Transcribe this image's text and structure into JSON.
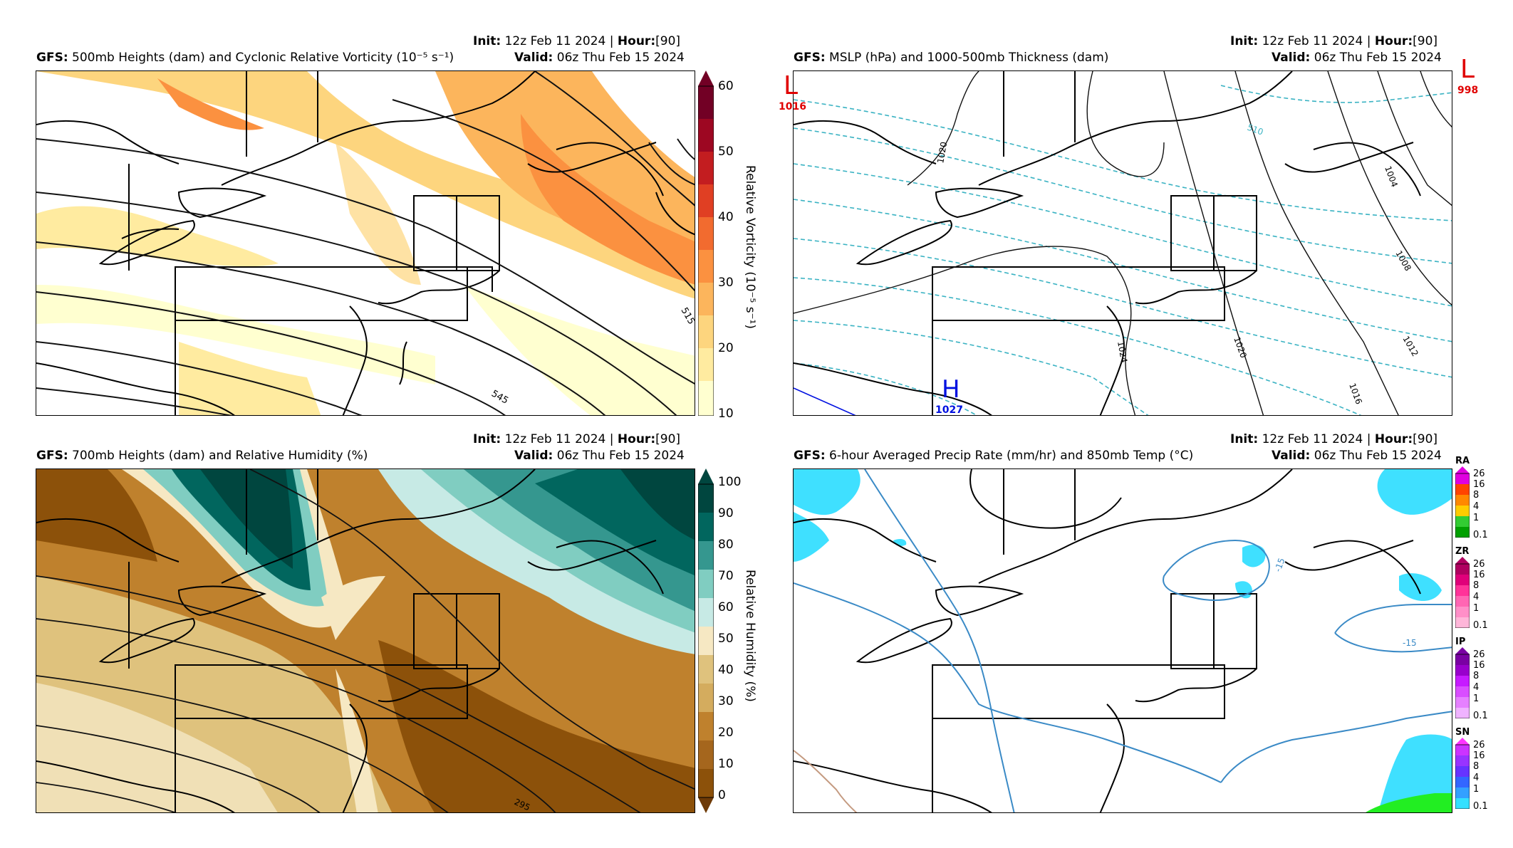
{
  "panels": [
    {
      "title_model": "GFS",
      "title": "500mb Heights (dam) and Cyclonic Relative Vorticity (10⁻⁵ s⁻¹)",
      "init_label": "Init",
      "init_value": "12z Feb 11 2024",
      "hour_label": "Hour",
      "hour_value": "[90]",
      "valid_label": "Valid",
      "valid_value": "06z Thu Feb 15 2024",
      "colorbar_label": "Relative Vorticity (10⁻⁵ s⁻¹)",
      "colorbar_ticks": [
        "60",
        "50",
        "40",
        "30",
        "20",
        "10"
      ],
      "contour_labels": [
        "515",
        "545"
      ]
    },
    {
      "title_model": "GFS",
      "title": "MSLP (hPa) and 1000-500mb Thickness (dam)",
      "init_label": "Init",
      "init_value": "12z Feb 11 2024",
      "hour_label": "Hour",
      "hour_value": "[90]",
      "valid_label": "Valid",
      "valid_value": "06z Thu Feb 15 2024",
      "lows": [
        {
          "symbol": "L",
          "value": "1016"
        },
        {
          "symbol": "L",
          "value": "998"
        }
      ],
      "highs": [
        {
          "symbol": "H",
          "value": "1027"
        }
      ],
      "contour_labels": [
        "1020",
        "1008",
        "1012",
        "1020",
        "1024",
        "1016",
        "510",
        "1004"
      ]
    },
    {
      "title_model": "GFS",
      "title": "700mb Heights (dam) and Relative Humidity (%)",
      "init_label": "Init",
      "init_value": "12z Feb 11 2024",
      "hour_label": "Hour",
      "hour_value": "[90]",
      "valid_label": "Valid",
      "valid_value": "06z Thu Feb 15 2024",
      "colorbar_label": "Relative Humidity (%)",
      "colorbar_ticks": [
        "100",
        "90",
        "80",
        "70",
        "60",
        "50",
        "40",
        "30",
        "20",
        "10",
        "0"
      ],
      "contour_labels": [
        "295"
      ]
    },
    {
      "title_model": "GFS",
      "title": "6-hour Averaged Precip Rate (mm/hr) and 850mb Temp (°C)",
      "init_label": "Init",
      "init_value": "12z Feb 11 2024",
      "hour_label": "Hour",
      "hour_value": "[90]",
      "valid_label": "Valid",
      "valid_value": "06z Thu Feb 15 2024",
      "contour_labels": [
        "-15",
        "-15"
      ],
      "precip_bars": [
        {
          "type": "RA",
          "ticks": [
            "26",
            "16",
            "8",
            "4",
            "1",
            "0.1"
          ],
          "colors": [
            "#00a000",
            "#33cc33",
            "#ffff00",
            "#ffcc00",
            "#ff8800",
            "#ff4400",
            "#e000e0"
          ]
        },
        {
          "type": "ZR",
          "ticks": [
            "26",
            "16",
            "8",
            "4",
            "1",
            "0.1"
          ],
          "colors": [
            "#ffb6d9",
            "#ff8fc8",
            "#ff66b3",
            "#ff3399",
            "#e0007a",
            "#b00060"
          ]
        },
        {
          "type": "IP",
          "ticks": [
            "26",
            "16",
            "8",
            "4",
            "1",
            "0.1"
          ],
          "colors": [
            "#f0b3ff",
            "#e680ff",
            "#d94dff",
            "#c61aff",
            "#9900cc",
            "#7a00a3"
          ]
        },
        {
          "type": "SN",
          "ticks": [
            "26",
            "16",
            "8",
            "4",
            "1",
            "0.1"
          ],
          "colors": [
            "#33e0ff",
            "#33a0ff",
            "#3366ff",
            "#6633ff",
            "#9933ff",
            "#cc33ff",
            "#ff33ff"
          ]
        }
      ]
    }
  ],
  "colors": {
    "vort": [
      "#ffffd0",
      "#ffeba0",
      "#fdd57e",
      "#fcb55c",
      "#fb9140",
      "#f26b2f",
      "#e03f23",
      "#c31d20",
      "#9d0722",
      "#720025"
    ],
    "rh": [
      "#6e3a07",
      "#8c510a",
      "#a5661d",
      "#bf812d",
      "#d4ac5e",
      "#dfc27d",
      "#f0e0b6",
      "#f6e8c3",
      "#ffffff",
      "#c7eae5",
      "#80cdc1",
      "#35978f",
      "#01665e",
      "#00463f"
    ],
    "thickness": "#3bb3c3",
    "temp850": "#3a8ac6",
    "low": "#e00000",
    "high": "#0010e0"
  }
}
